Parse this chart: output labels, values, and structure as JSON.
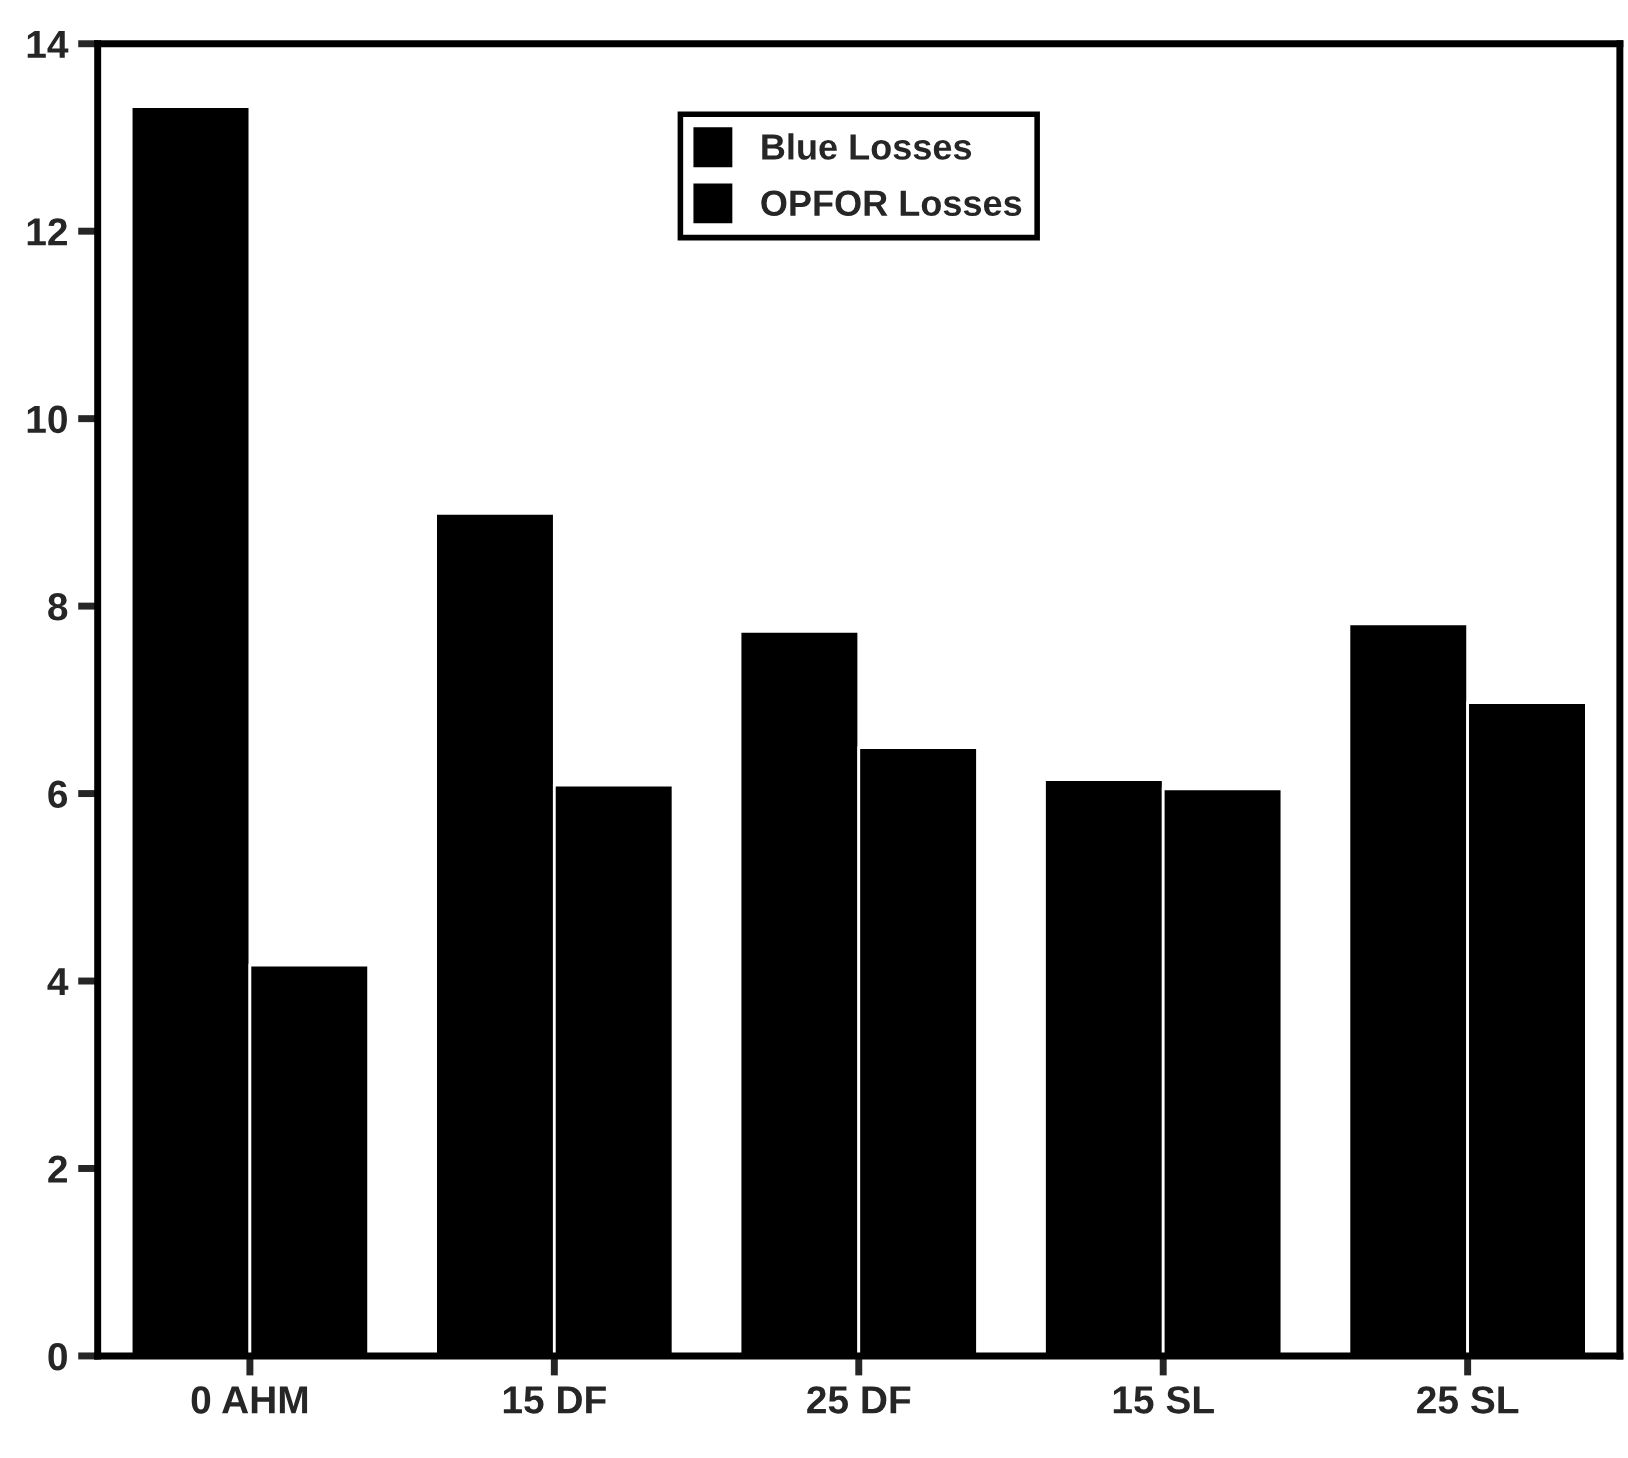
{
  "chart_data": {
    "type": "bar",
    "categories": [
      "0 AHM",
      "15 DF",
      "25 DF",
      "15 SL",
      "25 SL"
    ],
    "series": [
      {
        "name": "Blue Losses",
        "color": "#000000",
        "values": [
          13.33,
          8.99,
          7.73,
          6.15,
          7.81
        ]
      },
      {
        "name": "OPFOR Losses",
        "color": "#000000",
        "values": [
          4.17,
          6.09,
          6.49,
          6.05,
          6.97
        ]
      }
    ],
    "ylim": [
      0,
      14
    ],
    "yticks": [
      0,
      2,
      4,
      6,
      8,
      10,
      12,
      14
    ],
    "grid": false,
    "legend": "top"
  }
}
